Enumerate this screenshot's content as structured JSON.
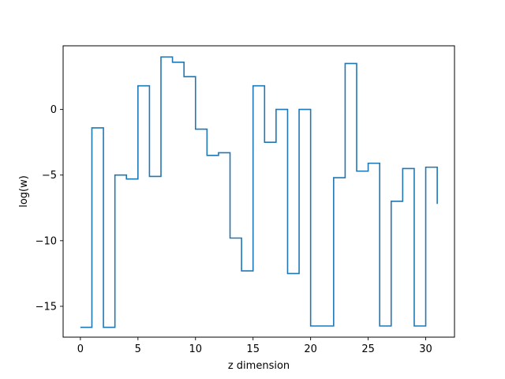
{
  "chart_data": {
    "type": "line",
    "drawstyle": "steps-post",
    "title": "",
    "xlabel": "z dimension",
    "ylabel": "log(w)",
    "xlim": [
      -1.5,
      32.5
    ],
    "ylim": [
      -17.35,
      4.85
    ],
    "xticks": [
      0,
      5,
      10,
      15,
      20,
      25,
      30
    ],
    "yticks": [
      -15,
      -10,
      -5,
      0
    ],
    "ytick_labels": [
      "−15",
      "−10",
      "−5",
      "0"
    ],
    "grid": false,
    "legend": "none",
    "series": [
      {
        "color": "#1f77b4",
        "x": [
          0,
          1,
          2,
          3,
          4,
          5,
          6,
          7,
          8,
          9,
          10,
          11,
          12,
          13,
          14,
          15,
          16,
          17,
          18,
          19,
          20,
          21,
          22,
          23,
          24,
          25,
          26,
          27,
          28,
          29,
          30,
          31
        ],
        "y": [
          -16.6,
          -1.4,
          -16.6,
          -5.0,
          -5.3,
          1.8,
          -5.1,
          4.0,
          3.6,
          2.5,
          -1.5,
          -3.5,
          -3.3,
          -9.8,
          -12.3,
          1.8,
          -2.5,
          0.0,
          -12.5,
          0.0,
          -16.5,
          -16.5,
          -5.2,
          3.5,
          -4.7,
          -4.1,
          -16.5,
          -7.0,
          -4.5,
          -16.5,
          -4.4,
          -7.2
        ]
      }
    ]
  }
}
